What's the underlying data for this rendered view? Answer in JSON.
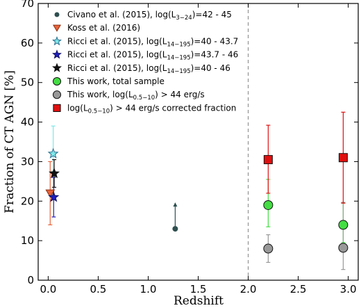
{
  "chart_data": {
    "type": "scatter",
    "xlabel": "Redshift",
    "ylabel": "Fraction of CT AGN [%]",
    "xlim": [
      -0.1,
      3.1
    ],
    "ylim": [
      0,
      70
    ],
    "xticks": [
      "0.0",
      "0.5",
      "1.0",
      "1.5",
      "2.0",
      "2.5",
      "3.0"
    ],
    "yticks": [
      "0",
      "10",
      "20",
      "30",
      "40",
      "50",
      "60",
      "70"
    ],
    "grid": false,
    "legend_position": "top-left",
    "reference_line": {
      "x": 2.0,
      "style": "dashed",
      "color": "#999999"
    },
    "series": [
      {
        "name": "Civano et al. (2015), log(L3-24)=42 - 45",
        "legend": {
          "pre": "Civano et al. (2015), log(L",
          "sub": "3−24",
          "post": ")=42 - 45"
        },
        "marker": "circle-small",
        "color": "#2f4f4f",
        "edge": "#2f4f4f",
        "points": [
          {
            "x": 1.27,
            "y": 13,
            "err_lo": 0,
            "err_hi": 6.5,
            "err_color": "#2f4f4f",
            "lower_limit": true
          }
        ]
      },
      {
        "name": "Koss et al. (2016)",
        "legend": {
          "pre": "Koss et al. (2016)",
          "sub": "",
          "post": ""
        },
        "marker": "triangle-down",
        "color": "#e8643c",
        "edge": "#8b2e10",
        "points": [
          {
            "x": 0.02,
            "y": 22,
            "err_lo": 8,
            "err_hi": 8,
            "err_color": "#e8643c"
          }
        ]
      },
      {
        "name": "Ricci et al. (2015), log(L14-195)=40 - 43.7",
        "legend": {
          "pre": "Ricci et al. (2015), log(L",
          "sub": "14−195",
          "post": ")=40 - 43.7"
        },
        "marker": "star",
        "color": "#7fe8e8",
        "edge": "#2b6e8f",
        "points": [
          {
            "x": 0.05,
            "y": 32,
            "err_lo": 4.5,
            "err_hi": 7,
            "err_color": "#7fe8e8"
          }
        ]
      },
      {
        "name": "Ricci et al. (2015), log(L14-195)=43.7 - 46",
        "legend": {
          "pre": "Ricci et al. (2015), log(L",
          "sub": "14−195",
          "post": ")=43.7 - 46"
        },
        "marker": "star",
        "color": "#1f1fbf",
        "edge": "#10105f",
        "points": [
          {
            "x": 0.055,
            "y": 21,
            "err_lo": 5,
            "err_hi": 5,
            "err_color": "#1f1fbf"
          }
        ]
      },
      {
        "name": "Ricci et al. (2015), log(L14-195)=40 - 46",
        "legend": {
          "pre": "Ricci et al. (2015), log(L",
          "sub": "14−195",
          "post": ")=40 - 46"
        },
        "marker": "star",
        "color": "#111111",
        "edge": "#111111",
        "points": [
          {
            "x": 0.06,
            "y": 27,
            "err_lo": 3.5,
            "err_hi": 3.5,
            "err_color": "#111111"
          }
        ]
      },
      {
        "name": "This work, total sample",
        "legend": {
          "pre": "This work, total sample",
          "sub": "",
          "post": ""
        },
        "marker": "circle",
        "color": "#44dd44",
        "edge": "#111111",
        "points": [
          {
            "x": 2.2,
            "y": 19,
            "err_lo": 5.5,
            "err_hi": 6.5,
            "err_color": "#44dd44"
          },
          {
            "x": 2.95,
            "y": 14,
            "err_lo": 4.5,
            "err_hi": 5.5,
            "err_color": "#44dd44"
          }
        ]
      },
      {
        "name": "This work, log(L0.5-10) > 44 erg/s",
        "legend": {
          "pre": "This work, log(L",
          "sub": "0.5−10",
          "post": ") > 44 erg/s"
        },
        "marker": "circle",
        "color": "#999999",
        "edge": "#111111",
        "points": [
          {
            "x": 2.2,
            "y": 8,
            "err_lo": 3.5,
            "err_hi": 3.5,
            "err_color": "#999999"
          },
          {
            "x": 2.95,
            "y": 8.2,
            "err_lo": 5.5,
            "err_hi": 11.5,
            "err_color": "#999999"
          }
        ]
      },
      {
        "name": "log(L0.5-10) > 44 erg/s corrected fraction",
        "legend": {
          "pre": "log(L",
          "sub": "0.5−10",
          "post": ") > 44 erg/s corrected fraction"
        },
        "marker": "square",
        "color": "#e01010",
        "edge": "#111111",
        "points": [
          {
            "x": 2.2,
            "y": 30.5,
            "err_lo": 8.5,
            "err_hi": 8.7,
            "err_color": "#e01010"
          },
          {
            "x": 2.95,
            "y": 31,
            "err_lo": 11.5,
            "err_hi": 11.5,
            "err_color": "#e01010"
          }
        ]
      }
    ]
  }
}
